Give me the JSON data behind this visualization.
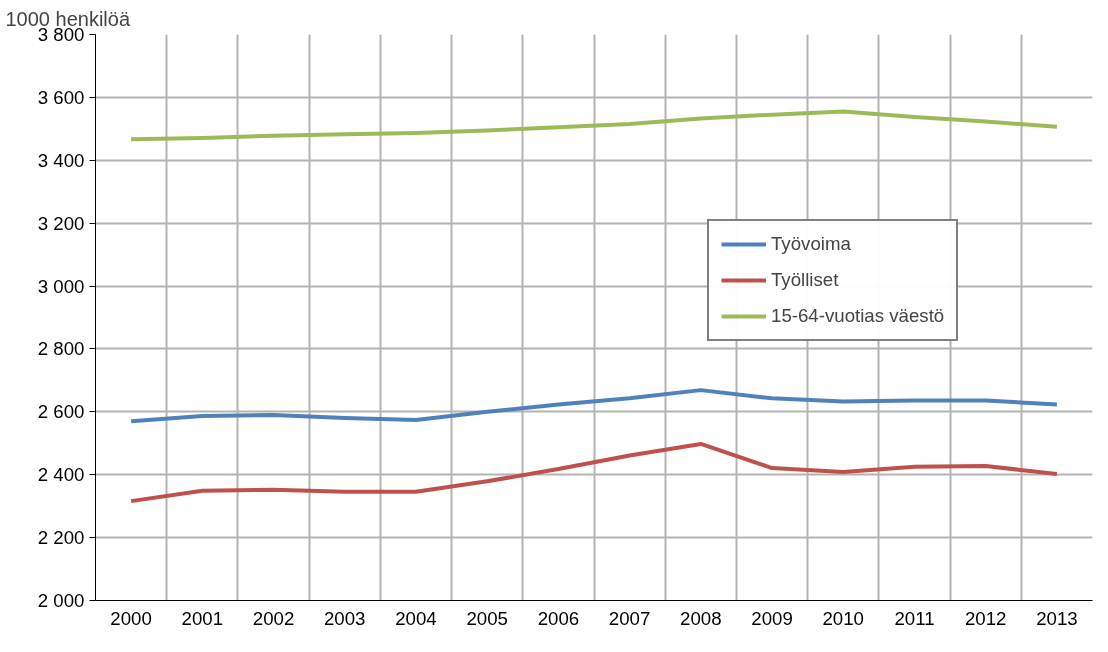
{
  "chart_data": {
    "type": "line",
    "ylabel": "1000 henkilöä",
    "categories": [
      "2000",
      "2001",
      "2002",
      "2003",
      "2004",
      "2005",
      "2006",
      "2007",
      "2008",
      "2009",
      "2010",
      "2011",
      "2012",
      "2013"
    ],
    "series": [
      {
        "name": "Työvoima",
        "color": "#4f81bd",
        "values": [
          2570,
          2587,
          2590,
          2580,
          2574,
          2600,
          2623,
          2643,
          2669,
          2643,
          2633,
          2636,
          2636,
          2623
        ]
      },
      {
        "name": "Työlliset",
        "color": "#c0504d",
        "values": [
          2316,
          2349,
          2352,
          2346,
          2346,
          2379,
          2418,
          2461,
          2498,
          2421,
          2409,
          2425,
          2428,
          2402
        ]
      },
      {
        "name": "15-64-vuotias väestö",
        "color": "#9bbb59",
        "values": [
          3467,
          3471,
          3478,
          3483,
          3487,
          3495,
          3505,
          3515,
          3533,
          3545,
          3555,
          3538,
          3523,
          3507
        ]
      }
    ],
    "ylim": [
      2000,
      3800
    ],
    "yticks": [
      {
        "value": 2000,
        "label": "2 000"
      },
      {
        "value": 2200,
        "label": "2 200"
      },
      {
        "value": 2400,
        "label": "2 400"
      },
      {
        "value": 2600,
        "label": "2 600"
      },
      {
        "value": 2800,
        "label": "2 800"
      },
      {
        "value": 3000,
        "label": "3 000"
      },
      {
        "value": 3200,
        "label": "3 200"
      },
      {
        "value": 3400,
        "label": "3 400"
      },
      {
        "value": 3600,
        "label": "3 600"
      },
      {
        "value": 3800,
        "label": "3 800"
      }
    ],
    "grid": true,
    "legend": "right",
    "marker": "none",
    "line_style": "solid"
  }
}
